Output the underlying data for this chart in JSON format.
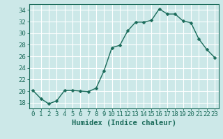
{
  "x": [
    0,
    1,
    2,
    3,
    4,
    5,
    6,
    7,
    8,
    9,
    10,
    11,
    12,
    13,
    14,
    15,
    16,
    17,
    18,
    19,
    20,
    21,
    22,
    23
  ],
  "y": [
    20.1,
    18.7,
    17.8,
    18.3,
    20.1,
    20.1,
    20.0,
    19.9,
    20.5,
    23.5,
    27.5,
    27.9,
    30.4,
    31.9,
    31.9,
    32.2,
    34.2,
    33.3,
    33.3,
    32.1,
    31.8,
    29.0,
    27.2,
    25.8
  ],
  "line_color": "#1a6b5a",
  "marker": "D",
  "marker_size": 2.5,
  "bg_color": "#cce8e8",
  "grid_color": "#ffffff",
  "xlabel": "Humidex (Indice chaleur)",
  "ylim": [
    17,
    35
  ],
  "xlim": [
    -0.5,
    23.5
  ],
  "yticks": [
    18,
    20,
    22,
    24,
    26,
    28,
    30,
    32,
    34
  ],
  "xticks": [
    0,
    1,
    2,
    3,
    4,
    5,
    6,
    7,
    8,
    9,
    10,
    11,
    12,
    13,
    14,
    15,
    16,
    17,
    18,
    19,
    20,
    21,
    22,
    23
  ],
  "xlabel_fontsize": 7.5,
  "tick_fontsize": 6.5,
  "tick_color": "#1a6b5a",
  "axis_color": "#1a6b5a",
  "linewidth": 1.0
}
